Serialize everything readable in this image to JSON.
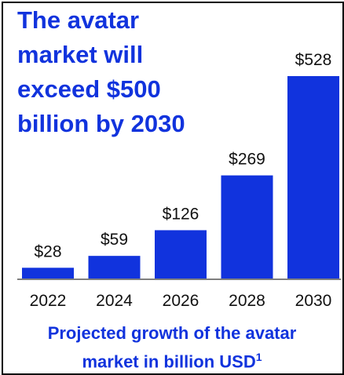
{
  "headline": "The avatar market will exceed $500 billion by 2030",
  "caption": {
    "line1": "Projected growth of the avatar",
    "line2": "market in billion USD",
    "footnote_marker": "1"
  },
  "colors": {
    "bar": "#1133dd",
    "text_accent": "#1133dd",
    "baseline": "#333333",
    "label": "#111111"
  },
  "chart_data": {
    "type": "bar",
    "categories": [
      "2022",
      "2024",
      "2026",
      "2028",
      "2030"
    ],
    "values": [
      28,
      59,
      126,
      269,
      528
    ],
    "value_labels": [
      "$28",
      "$59",
      "$126",
      "$269",
      "$528"
    ],
    "xlabel": "",
    "ylabel": "",
    "ylim": [
      0,
      528
    ],
    "grid": false,
    "legend": "none"
  }
}
